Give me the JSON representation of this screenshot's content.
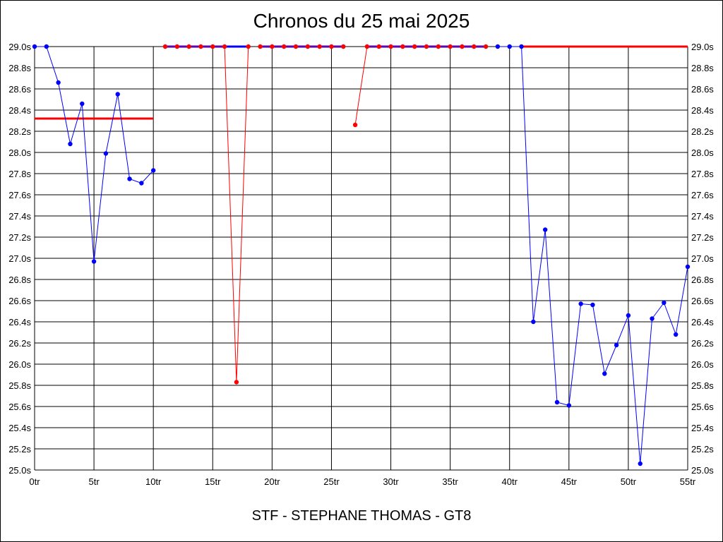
{
  "chart_data": {
    "type": "line",
    "title": "Chronos du 25 mai 2025",
    "subtitle": "STF - STEPHANE THOMAS - GT8",
    "ylim": [
      25.0,
      29.0
    ],
    "xlim": [
      0,
      55
    ],
    "y_ticks": [
      "25.0s",
      "25.2s",
      "25.4s",
      "25.6s",
      "25.8s",
      "26.0s",
      "26.2s",
      "26.4s",
      "26.6s",
      "26.8s",
      "27.0s",
      "27.2s",
      "27.4s",
      "27.6s",
      "27.8s",
      "28.0s",
      "28.2s",
      "28.4s",
      "28.6s",
      "28.8s",
      "29.0s"
    ],
    "x_ticks": [
      "0tr",
      "5tr",
      "10tr",
      "15tr",
      "20tr",
      "25tr",
      "30tr",
      "35tr",
      "40tr",
      "45tr",
      "50tr",
      "55tr"
    ],
    "grid": true,
    "colors": {
      "blue": "#0000ff",
      "red": "#ff0000",
      "axis": "#000000"
    },
    "series": [
      {
        "color": "#0000ff",
        "x": [
          0,
          1,
          2,
          3,
          4,
          5,
          6,
          7,
          8,
          9,
          10
        ],
        "y": [
          29.0,
          29.0,
          28.66,
          28.08,
          28.46,
          26.97,
          27.99,
          28.55,
          27.75,
          27.71,
          27.83
        ]
      },
      {
        "color": "#ff0000",
        "x": [
          11,
          12,
          13,
          14,
          15,
          16,
          17,
          18
        ],
        "y": [
          29.0,
          29.0,
          29.0,
          29.0,
          29.0,
          29.0,
          25.83,
          29.0
        ]
      },
      {
        "color": "#ff0000",
        "x": [
          19,
          20,
          21,
          22,
          23,
          24,
          25,
          26
        ],
        "y": [
          29.0,
          29.0,
          29.0,
          29.0,
          29.0,
          29.0,
          29.0,
          29.0
        ]
      },
      {
        "color": "#ff0000",
        "x": [
          27,
          28,
          29,
          30,
          31,
          32,
          33,
          34,
          35,
          36,
          37,
          38
        ],
        "y": [
          28.26,
          29.0,
          29.0,
          29.0,
          29.0,
          29.0,
          29.0,
          29.0,
          29.0,
          29.0,
          29.0,
          29.0
        ]
      },
      {
        "color": "#0000ff",
        "x": [
          39,
          40,
          41,
          42,
          43,
          44,
          45,
          46,
          47,
          48,
          49,
          50,
          51,
          52,
          53,
          54,
          55
        ],
        "y": [
          29.0,
          29.0,
          29.0,
          26.4,
          27.27,
          25.64,
          25.61,
          26.57,
          26.56,
          25.91,
          26.18,
          26.46,
          25.06,
          26.43,
          26.58,
          26.28,
          26.92
        ]
      }
    ],
    "reference_lines": [
      {
        "color": "#ff0000",
        "x": [
          0,
          10
        ],
        "y": 28.32
      },
      {
        "color": "#0000ff",
        "x": [
          11,
          18
        ],
        "y": 29.0
      },
      {
        "color": "#0000ff",
        "x": [
          19,
          26
        ],
        "y": 29.0
      },
      {
        "color": "#0000ff",
        "x": [
          28,
          38
        ],
        "y": 29.0
      },
      {
        "color": "#ff0000",
        "x": [
          41,
          55
        ],
        "y": 29.0
      }
    ]
  }
}
